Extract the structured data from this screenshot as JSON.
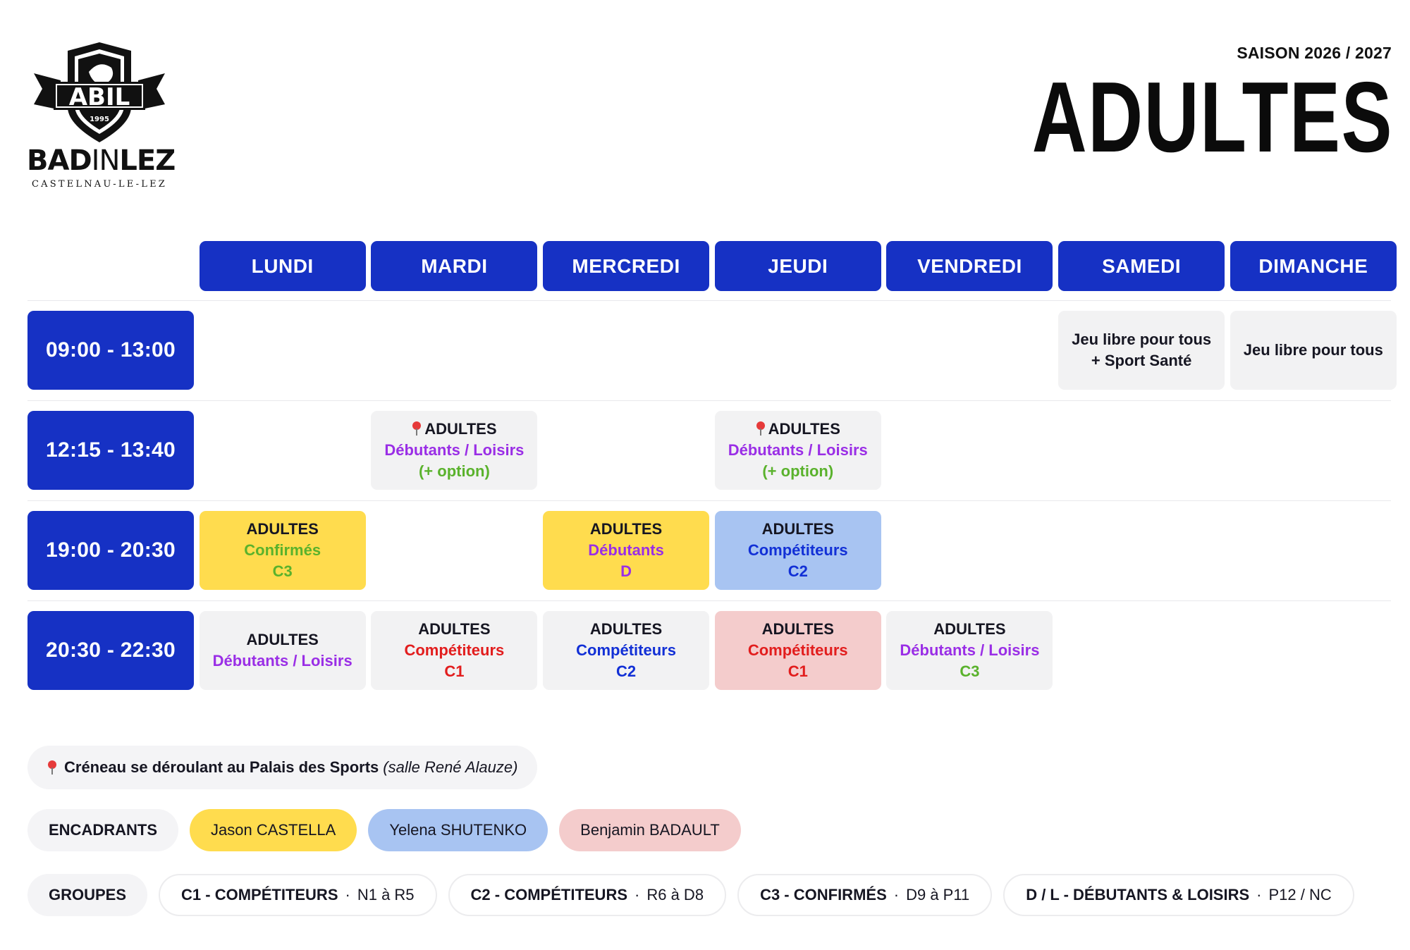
{
  "header": {
    "logo_badge_text": "ABIL",
    "logo_year": "1995",
    "logo_word_bold_a": "BAD",
    "logo_word_thin": "IN",
    "logo_word_bold_b": "LEZ",
    "logo_sub": "CASTELNAU-LE-LEZ",
    "season": "SAISON 2026 / 2027",
    "title": "ADULTES"
  },
  "days": [
    "LUNDI",
    "MARDI",
    "MERCREDI",
    "JEUDI",
    "VENDREDI",
    "SAMEDI",
    "DIMANCHE"
  ],
  "slots": [
    {
      "time": "09:00 - 13:00",
      "cells": {
        "samedi": {
          "line1": "Jeu libre pour tous",
          "line2": "+ Sport Santé"
        },
        "dimanche": {
          "line1": "Jeu libre pour tous"
        }
      }
    },
    {
      "time": "12:15 - 13:40",
      "cells": {
        "mardi": {
          "line1": "ADULTES",
          "line2": "Débutants / Loisirs",
          "line3": "(+ option)"
        },
        "jeudi": {
          "line1": "ADULTES",
          "line2": "Débutants / Loisirs",
          "line3": "(+ option)"
        }
      }
    },
    {
      "time": "19:00 - 20:30",
      "cells": {
        "lundi": {
          "line1": "ADULTES",
          "line2": "Confirmés",
          "line3": "C3"
        },
        "mercredi": {
          "line1": "ADULTES",
          "line2": "Débutants",
          "line3": "D"
        },
        "jeudi": {
          "line1": "ADULTES",
          "line2": "Compétiteurs",
          "line3": "C2"
        }
      }
    },
    {
      "time": "20:30 - 22:30",
      "cells": {
        "lundi": {
          "line1": "ADULTES",
          "line2": "Débutants / Loisirs"
        },
        "mardi": {
          "line1": "ADULTES",
          "line2": "Compétiteurs",
          "line3": "C1"
        },
        "mercredi": {
          "line1": "ADULTES",
          "line2": "Compétiteurs",
          "line3": "C2"
        },
        "jeudi": {
          "line1": "ADULTES",
          "line2": "Compétiteurs",
          "line3": "C1"
        },
        "vendredi": {
          "line1": "ADULTES",
          "line2": "Débutants / Loisirs",
          "line3": "C3"
        }
      }
    }
  ],
  "note": {
    "text": "Créneau se déroulant au Palais des Sports",
    "italic": "(salle René Alauze)"
  },
  "staff": {
    "label": "ENCADRANTS",
    "members": [
      "Jason CASTELLA",
      "Yelena SHUTENKO",
      "Benjamin BADAULT"
    ]
  },
  "groups": {
    "label": "GROUPES",
    "items": [
      {
        "name": "C1 - COMPÉTITEURS",
        "sep": "·",
        "range": "N1 à R5"
      },
      {
        "name": "C2 - COMPÉTITEURS",
        "sep": "·",
        "range": "R6 à D8"
      },
      {
        "name": "C3 - CONFIRMÉS",
        "sep": "·",
        "range": "D9 à P11"
      },
      {
        "name": "D / L - DÉBUTANTS & LOISIRS",
        "sep": "·",
        "range": "P12 / NC"
      }
    ]
  },
  "colors": {
    "primary_blue": "#1631c4",
    "yellow": "#ffdc4e",
    "light_blue": "#a8c4f2",
    "pink": "#f4cccc",
    "grey": "#f2f2f3",
    "red_text": "#e21d1d",
    "blue_text": "#1230d6",
    "green_text": "#5ab22c",
    "purple_text": "#9a2ee6"
  },
  "icons": [
    "shield-logo-icon",
    "location-pin-icon"
  ]
}
